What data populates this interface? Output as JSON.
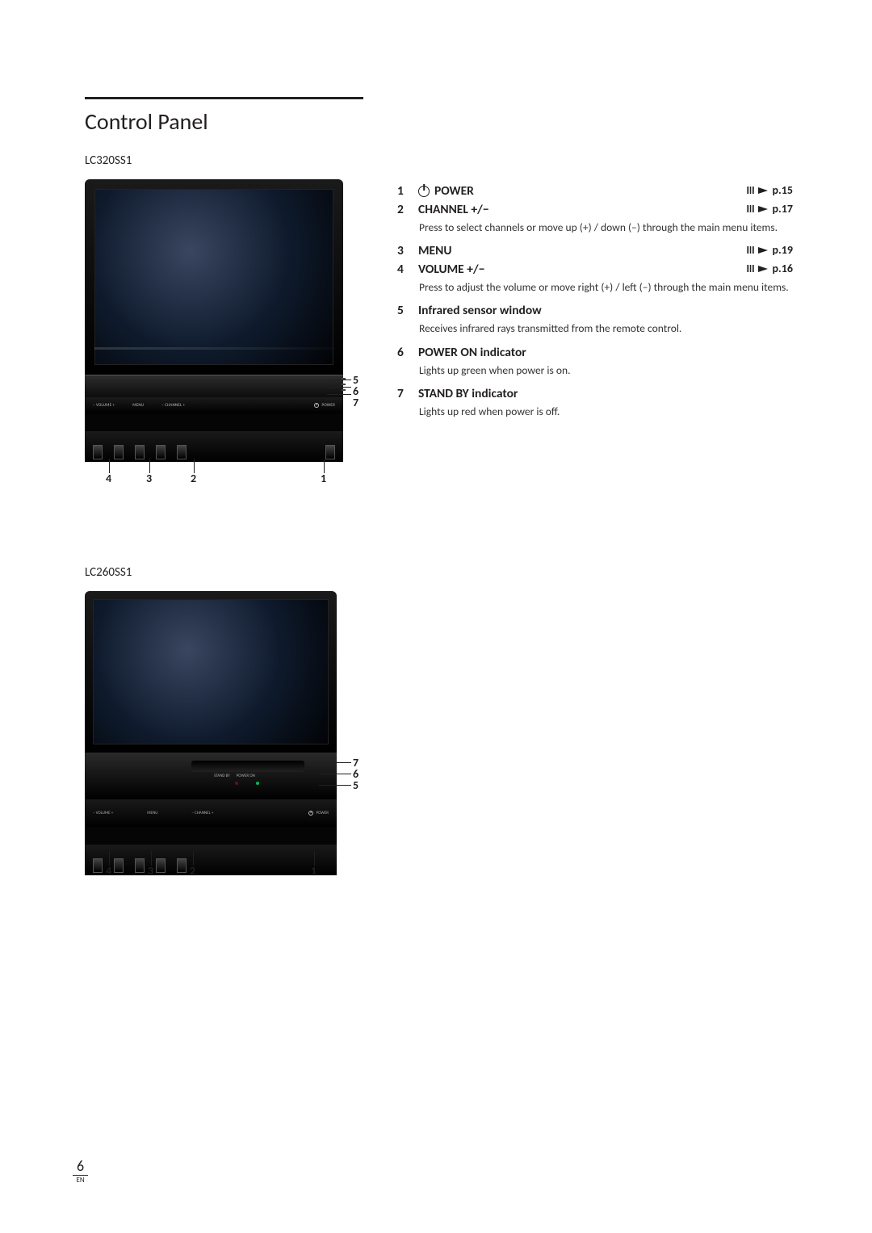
{
  "title": "Control Panel",
  "model1": "LC320SS1",
  "model2": "LC260SS1",
  "pageNumber": "6",
  "pageLang": "EN",
  "tvControls": {
    "volume": "− VOLUME +",
    "menu": "MENU",
    "channel": "− CHANNEL +",
    "power": "POWER",
    "standby": "STAND BY",
    "poweron": "POWER ON"
  },
  "items": [
    {
      "num": "1",
      "label": "POWER",
      "hasPower": true,
      "page": "p.15"
    },
    {
      "num": "2",
      "label": "CHANNEL +/−",
      "page": "p.17",
      "desc": "Press to select channels or move up (+) / down (–) through the main menu items."
    },
    {
      "num": "3",
      "label": "MENU",
      "page": "p.19"
    },
    {
      "num": "4",
      "label": "VOLUME +/−",
      "page": "p.16",
      "desc": "Press to adjust the volume or move right (+) / left (–) through the main menu items."
    },
    {
      "num": "5",
      "label": "Infrared sensor window",
      "desc": "Receives infrared rays transmitted from the remote control."
    },
    {
      "num": "6",
      "label": "POWER ON indicator",
      "desc": "Lights up green when power is on."
    },
    {
      "num": "7",
      "label": "STAND BY indicator",
      "desc": "Lights up red when power is off."
    }
  ],
  "callouts": {
    "d1": {
      "right": [
        "5",
        "6",
        "7"
      ],
      "bottom": [
        "4",
        "3",
        "2",
        "1"
      ]
    },
    "d2": {
      "right": [
        "7",
        "6",
        "5"
      ],
      "bottom": [
        "4",
        "3",
        "2",
        "1"
      ]
    }
  }
}
